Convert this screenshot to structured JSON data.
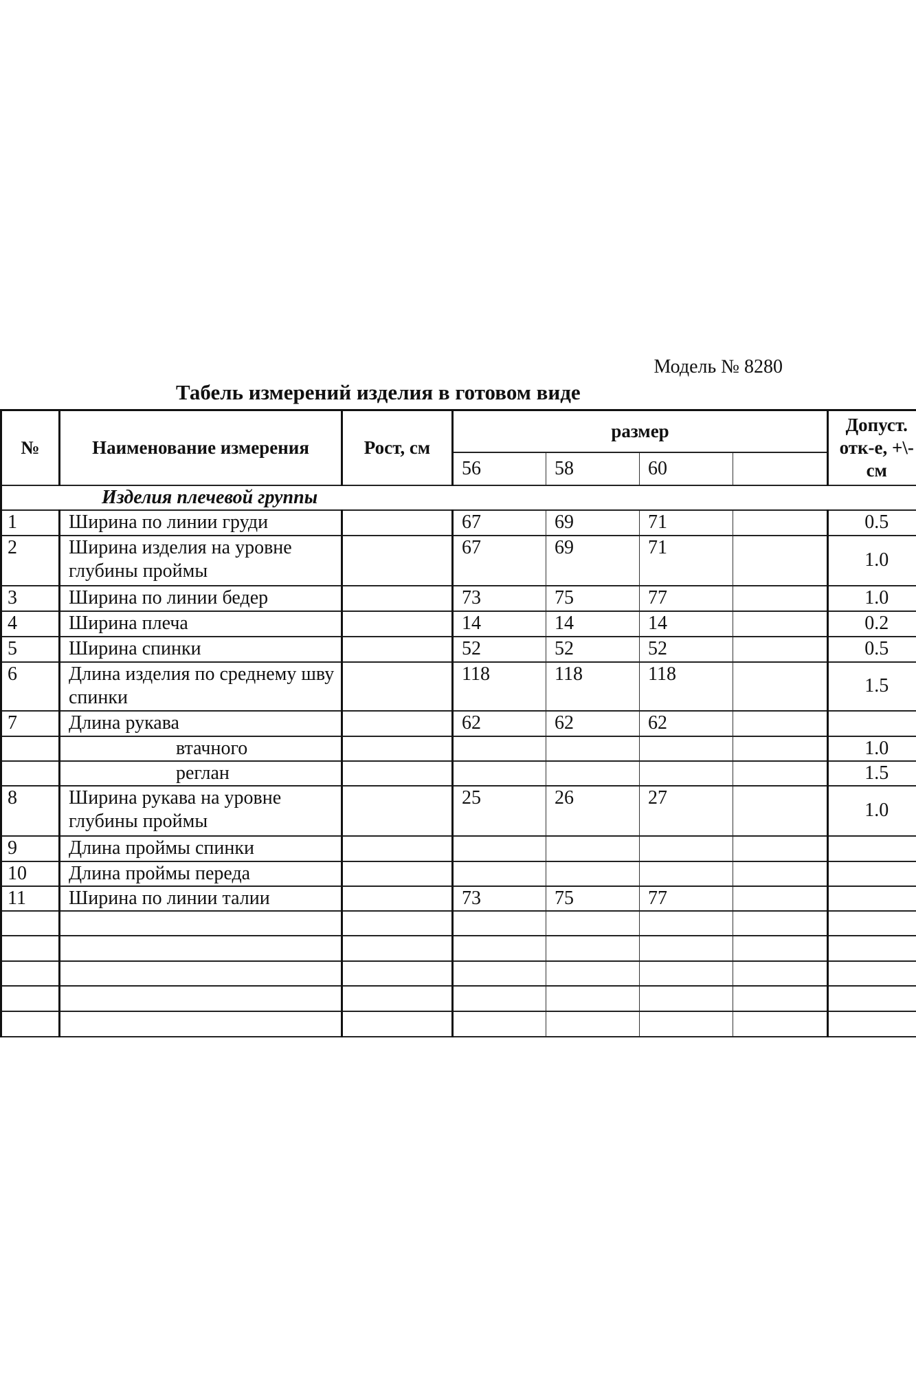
{
  "model": "Модель № 8280",
  "title": "Табель измерений изделия в готовом виде",
  "headers": {
    "num": "№",
    "name": "Наименование измерения",
    "height": "Рост, см",
    "size": "размер",
    "sizes": [
      "56",
      "58",
      "60",
      ""
    ],
    "tolerance": "Допуст. отк-е, +\\-см"
  },
  "group": "Изделия плечевой группы",
  "rows": [
    {
      "n": "1",
      "name": "Ширина по линии груди",
      "s": [
        "67",
        "69",
        "71"
      ],
      "tol": "0.5",
      "h": 37
    },
    {
      "n": "2",
      "name": "Ширина изделия на уровне глубины проймы",
      "s": [
        "67",
        "69",
        "71"
      ],
      "tol": "1.0",
      "h": 73
    },
    {
      "n": "3",
      "name": "Ширина по линии бедер",
      "s": [
        "73",
        "75",
        "77"
      ],
      "tol": "1.0",
      "h": 37
    },
    {
      "n": "4",
      "name": "Ширина плеча",
      "s": [
        "14",
        "14",
        "14"
      ],
      "tol": "0.2",
      "h": 37
    },
    {
      "n": "5",
      "name": "Ширина спинки",
      "s": [
        "52",
        "52",
        "52"
      ],
      "tol": "0.5",
      "h": 37
    },
    {
      "n": "6",
      "name": "Длина изделия по среднему шву спинки",
      "s": [
        "118",
        "118",
        "118"
      ],
      "tol": "1.5",
      "h": 71
    },
    {
      "n": "7",
      "name": "Длина рукава",
      "s": [
        "62",
        "62",
        "62"
      ],
      "tol": "",
      "h": 37
    },
    {
      "n": "",
      "name": "втачного",
      "sub": true,
      "s": [
        "",
        "",
        ""
      ],
      "tol": "1.0",
      "h": 36
    },
    {
      "n": "",
      "name": "реглан",
      "sub": true,
      "s": [
        "",
        "",
        ""
      ],
      "tol": "1.5",
      "h": 35
    },
    {
      "n": "8",
      "name": "Ширина рукава на уровне глубины проймы",
      "s": [
        "25",
        "26",
        "27"
      ],
      "tol": "1.0",
      "h": 73
    },
    {
      "n": "9",
      "name": "Длина проймы спинки",
      "s": [
        "",
        "",
        ""
      ],
      "tol": "",
      "h": 37
    },
    {
      "n": "10",
      "name": "Длина проймы переда",
      "s": [
        "",
        "",
        ""
      ],
      "tol": "",
      "h": 36
    },
    {
      "n": "11",
      "name": "Ширина по линии талии",
      "s": [
        "73",
        "75",
        "77"
      ],
      "tol": "",
      "h": 36
    },
    {
      "n": "",
      "name": "",
      "s": [
        "",
        "",
        ""
      ],
      "tol": "",
      "h": 36
    },
    {
      "n": "",
      "name": "",
      "s": [
        "",
        "",
        ""
      ],
      "tol": "",
      "h": 37
    },
    {
      "n": "",
      "name": "",
      "s": [
        "",
        "",
        ""
      ],
      "tol": "",
      "h": 36
    },
    {
      "n": "",
      "name": "",
      "s": [
        "",
        "",
        ""
      ],
      "tol": "",
      "h": 37
    },
    {
      "n": "",
      "name": "",
      "s": [
        "",
        "",
        ""
      ],
      "tol": "",
      "h": 37
    }
  ]
}
